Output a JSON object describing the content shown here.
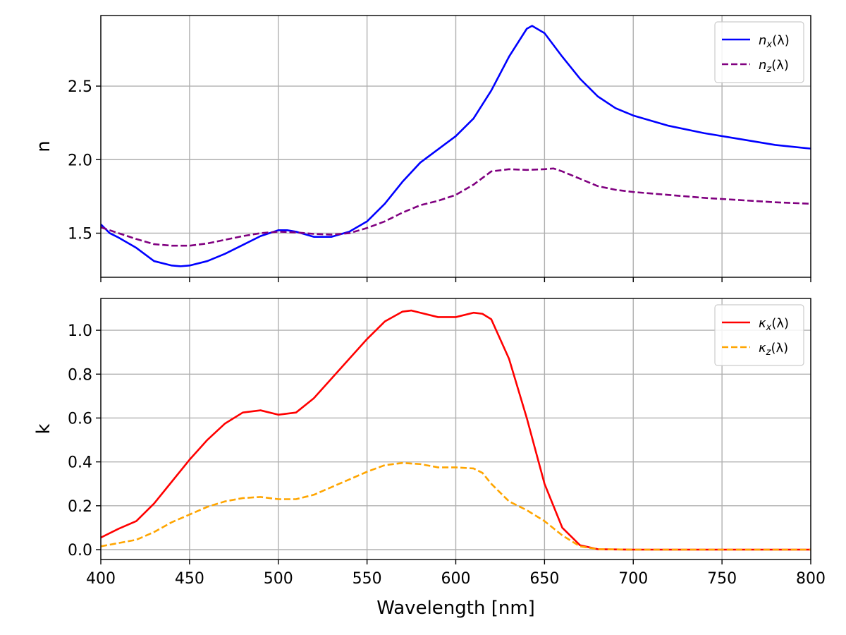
{
  "chart_data": [
    {
      "type": "line",
      "ylabel": "n",
      "xlim": [
        400,
        800
      ],
      "ylim": [
        1.2,
        2.98
      ],
      "yticks": [
        "1.5",
        "2.0",
        "2.5"
      ],
      "xticks": [
        "400",
        "450",
        "500",
        "550",
        "600",
        "650",
        "700",
        "750",
        "800"
      ],
      "grid": true,
      "legend_position": "top-right",
      "series": [
        {
          "name": "n_x(λ)",
          "name_main": "n",
          "name_sub": "x",
          "name_tail": "(λ)",
          "color": "#0000ff",
          "style": "solid",
          "x": [
            400,
            405,
            410,
            420,
            430,
            440,
            445,
            450,
            460,
            470,
            480,
            490,
            500,
            505,
            510,
            520,
            530,
            540,
            550,
            560,
            570,
            580,
            590,
            600,
            610,
            620,
            630,
            640,
            643,
            650,
            660,
            670,
            680,
            690,
            700,
            720,
            740,
            760,
            780,
            800
          ],
          "y": [
            1.56,
            1.5,
            1.47,
            1.4,
            1.31,
            1.28,
            1.275,
            1.28,
            1.31,
            1.36,
            1.42,
            1.48,
            1.52,
            1.52,
            1.51,
            1.475,
            1.475,
            1.51,
            1.58,
            1.7,
            1.85,
            1.98,
            2.07,
            2.16,
            2.28,
            2.47,
            2.7,
            2.89,
            2.91,
            2.86,
            2.7,
            2.55,
            2.43,
            2.35,
            2.3,
            2.23,
            2.18,
            2.14,
            2.1,
            2.075
          ]
        },
        {
          "name": "n_z(λ)",
          "name_main": "n",
          "name_sub": "z",
          "name_tail": "(λ)",
          "color": "#800080",
          "style": "dashed",
          "x": [
            400,
            410,
            420,
            430,
            440,
            450,
            460,
            470,
            480,
            490,
            500,
            510,
            520,
            530,
            540,
            550,
            560,
            570,
            580,
            590,
            600,
            610,
            620,
            630,
            640,
            650,
            655,
            660,
            670,
            680,
            690,
            700,
            720,
            740,
            760,
            780,
            800
          ],
          "y": [
            1.54,
            1.5,
            1.46,
            1.425,
            1.415,
            1.415,
            1.43,
            1.455,
            1.48,
            1.5,
            1.51,
            1.505,
            1.495,
            1.49,
            1.5,
            1.535,
            1.58,
            1.64,
            1.69,
            1.72,
            1.76,
            1.83,
            1.92,
            1.935,
            1.93,
            1.935,
            1.94,
            1.92,
            1.87,
            1.82,
            1.795,
            1.78,
            1.76,
            1.74,
            1.725,
            1.71,
            1.7
          ]
        }
      ]
    },
    {
      "type": "line",
      "ylabel": "k",
      "xlabel": "Wavelength [nm]",
      "xlim": [
        400,
        800
      ],
      "ylim": [
        -0.045,
        1.145
      ],
      "yticks": [
        "0.0",
        "0.2",
        "0.4",
        "0.6",
        "0.8",
        "1.0"
      ],
      "xticks": [
        "400",
        "450",
        "500",
        "550",
        "600",
        "650",
        "700",
        "750",
        "800"
      ],
      "grid": true,
      "legend_position": "top-right",
      "series": [
        {
          "name": "κ_x(λ)",
          "name_main": "κ",
          "name_sub": "x",
          "name_tail": "(λ)",
          "color": "#ff0000",
          "style": "solid",
          "x": [
            400,
            410,
            420,
            430,
            440,
            450,
            460,
            470,
            480,
            490,
            500,
            510,
            520,
            530,
            540,
            550,
            560,
            570,
            575,
            580,
            590,
            600,
            610,
            615,
            620,
            630,
            640,
            650,
            660,
            670,
            680,
            700,
            800
          ],
          "y": [
            0.055,
            0.095,
            0.13,
            0.21,
            0.31,
            0.41,
            0.5,
            0.575,
            0.625,
            0.635,
            0.615,
            0.625,
            0.69,
            0.78,
            0.87,
            0.96,
            1.04,
            1.085,
            1.09,
            1.08,
            1.06,
            1.06,
            1.08,
            1.075,
            1.05,
            0.87,
            0.6,
            0.3,
            0.1,
            0.02,
            0.002,
            0,
            0
          ]
        },
        {
          "name": "κ_z(λ)",
          "name_main": "κ",
          "name_sub": "z",
          "name_tail": "(λ)",
          "color": "#ffa500",
          "style": "dashed",
          "x": [
            400,
            410,
            420,
            430,
            440,
            450,
            460,
            470,
            480,
            490,
            500,
            510,
            520,
            530,
            540,
            550,
            560,
            570,
            580,
            590,
            600,
            610,
            615,
            620,
            630,
            640,
            650,
            660,
            670,
            680,
            700,
            800
          ],
          "y": [
            0.015,
            0.03,
            0.045,
            0.08,
            0.125,
            0.16,
            0.195,
            0.22,
            0.235,
            0.24,
            0.23,
            0.23,
            0.25,
            0.285,
            0.32,
            0.355,
            0.385,
            0.395,
            0.39,
            0.375,
            0.375,
            0.37,
            0.35,
            0.3,
            0.22,
            0.18,
            0.13,
            0.065,
            0.015,
            0.002,
            0,
            0
          ]
        }
      ]
    }
  ]
}
